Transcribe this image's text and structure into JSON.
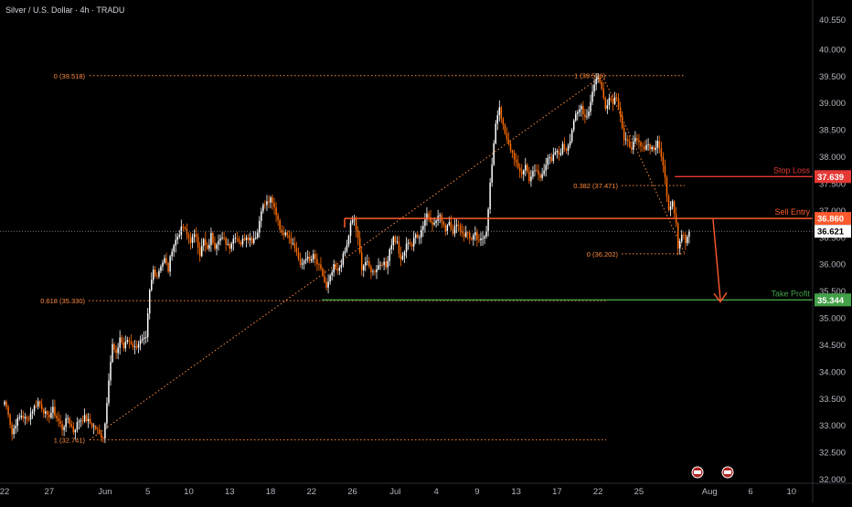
{
  "header": {
    "title": "Silver / U.S. Dollar · 4h · TRADU"
  },
  "colors": {
    "background": "#000000",
    "up": "#ffffff",
    "down": "#ff6d00",
    "fib": "#ff8a3d",
    "entry": "#ff5a2d",
    "stop": "#e53935",
    "take": "#43a047",
    "axis_text": "#d1d4dc",
    "grid_text": "#b2b5be"
  },
  "chart_data": {
    "type": "candlestick",
    "title": "Silver / U.S. Dollar · 4h · TRADU",
    "ylim": [
      32.0,
      40.75
    ],
    "y_ticks": [
      "40.550",
      "40.000",
      "39.500",
      "39.000",
      "38.500",
      "38.000",
      "37.500",
      "37.000",
      "36.500",
      "36.000",
      "35.500",
      "35.000",
      "34.500",
      "34.000",
      "33.500",
      "33.000",
      "32.500",
      "32.000"
    ],
    "x_ticks": [
      {
        "label": "22",
        "bar": 0
      },
      {
        "label": "27",
        "bar": 24
      },
      {
        "label": "Jun",
        "bar": 54
      },
      {
        "label": "5",
        "bar": 77
      },
      {
        "label": "10",
        "bar": 99
      },
      {
        "label": "13",
        "bar": 121
      },
      {
        "label": "18",
        "bar": 143
      },
      {
        "label": "22",
        "bar": 165
      },
      {
        "label": "26",
        "bar": 187
      },
      {
        "label": "Jul",
        "bar": 210
      },
      {
        "label": "4",
        "bar": 232
      },
      {
        "label": "9",
        "bar": 254
      },
      {
        "label": "13",
        "bar": 275
      },
      {
        "label": "17",
        "bar": 297
      },
      {
        "label": "22",
        "bar": 319
      },
      {
        "label": "25",
        "bar": 341
      },
      {
        "label": "Aug",
        "bar": 379
      },
      {
        "label": "6",
        "bar": 401
      },
      {
        "label": "10",
        "bar": 423
      }
    ],
    "anchors": [
      [
        0,
        33.45
      ],
      [
        2,
        33.25
      ],
      [
        4,
        32.85
      ],
      [
        6,
        33.05
      ],
      [
        9,
        33.2
      ],
      [
        12,
        33.1
      ],
      [
        15,
        33.3
      ],
      [
        18,
        33.45
      ],
      [
        20,
        33.35
      ],
      [
        23,
        33.15
      ],
      [
        26,
        33.3
      ],
      [
        28,
        33.15
      ],
      [
        31,
        32.95
      ],
      [
        34,
        33.15
      ],
      [
        37,
        32.9
      ],
      [
        40,
        33.1
      ],
      [
        43,
        33.15
      ],
      [
        46,
        33.05
      ],
      [
        49,
        32.95
      ],
      [
        51,
        32.85
      ],
      [
        53,
        32.8
      ],
      [
        54,
        33.05
      ],
      [
        56,
        33.9
      ],
      [
        58,
        34.5
      ],
      [
        60,
        34.3
      ],
      [
        62,
        34.65
      ],
      [
        64,
        34.45
      ],
      [
        66,
        34.6
      ],
      [
        68,
        34.55
      ],
      [
        70,
        34.45
      ],
      [
        72,
        34.55
      ],
      [
        76,
        34.6
      ],
      [
        78,
        35.5
      ],
      [
        80,
        35.9
      ],
      [
        82,
        35.8
      ],
      [
        84,
        36.0
      ],
      [
        86,
        36.1
      ],
      [
        88,
        35.9
      ],
      [
        90,
        36.3
      ],
      [
        94,
        36.6
      ],
      [
        96,
        36.7
      ],
      [
        98,
        36.55
      ],
      [
        100,
        36.45
      ],
      [
        103,
        36.55
      ],
      [
        105,
        36.2
      ],
      [
        107,
        36.45
      ],
      [
        109,
        36.25
      ],
      [
        111,
        36.55
      ],
      [
        113,
        36.35
      ],
      [
        115,
        36.5
      ],
      [
        118,
        36.45
      ],
      [
        121,
        36.35
      ],
      [
        124,
        36.55
      ],
      [
        127,
        36.4
      ],
      [
        130,
        36.55
      ],
      [
        133,
        36.45
      ],
      [
        136,
        36.6
      ],
      [
        138,
        37.05
      ],
      [
        141,
        37.15
      ],
      [
        143,
        37.2
      ],
      [
        145,
        37.05
      ],
      [
        147,
        36.85
      ],
      [
        149,
        36.55
      ],
      [
        151,
        36.65
      ],
      [
        154,
        36.45
      ],
      [
        157,
        36.25
      ],
      [
        159,
        35.95
      ],
      [
        162,
        36.15
      ],
      [
        164,
        36.05
      ],
      [
        166,
        36.15
      ],
      [
        169,
        35.95
      ],
      [
        171,
        35.8
      ],
      [
        173,
        35.55
      ],
      [
        175,
        35.75
      ],
      [
        177,
        35.95
      ],
      [
        179,
        35.85
      ],
      [
        181,
        36.05
      ],
      [
        184,
        36.35
      ],
      [
        186,
        36.75
      ],
      [
        188,
        36.85
      ],
      [
        190,
        36.45
      ],
      [
        192,
        35.95
      ],
      [
        194,
        36.05
      ],
      [
        196,
        35.95
      ],
      [
        198,
        35.85
      ],
      [
        200,
        35.95
      ],
      [
        203,
        36.05
      ],
      [
        205,
        35.95
      ],
      [
        207,
        36.3
      ],
      [
        209,
        36.5
      ],
      [
        211,
        36.4
      ],
      [
        213,
        36.05
      ],
      [
        215,
        36.25
      ],
      [
        217,
        36.45
      ],
      [
        219,
        36.35
      ],
      [
        221,
        36.55
      ],
      [
        223,
        36.55
      ],
      [
        225,
        36.75
      ],
      [
        227,
        36.95
      ],
      [
        229,
        36.85
      ],
      [
        231,
        36.75
      ],
      [
        233,
        36.9
      ],
      [
        235,
        36.85
      ],
      [
        237,
        36.65
      ],
      [
        239,
        36.85
      ],
      [
        241,
        36.55
      ],
      [
        243,
        36.8
      ],
      [
        245,
        36.65
      ],
      [
        247,
        36.55
      ],
      [
        249,
        36.6
      ],
      [
        251,
        36.45
      ],
      [
        253,
        36.55
      ],
      [
        255,
        36.4
      ],
      [
        257,
        36.5
      ],
      [
        259,
        36.65
      ],
      [
        261,
        37.5
      ],
      [
        263,
        38.2
      ],
      [
        264,
        38.65
      ],
      [
        266,
        38.95
      ],
      [
        268,
        38.55
      ],
      [
        270,
        38.3
      ],
      [
        272,
        38.15
      ],
      [
        274,
        38.0
      ],
      [
        276,
        37.75
      ],
      [
        278,
        37.7
      ],
      [
        280,
        37.85
      ],
      [
        282,
        37.6
      ],
      [
        284,
        37.7
      ],
      [
        286,
        37.75
      ],
      [
        288,
        37.6
      ],
      [
        290,
        37.8
      ],
      [
        292,
        38.0
      ],
      [
        294,
        37.9
      ],
      [
        296,
        38.1
      ],
      [
        298,
        38.05
      ],
      [
        300,
        38.2
      ],
      [
        302,
        38.15
      ],
      [
        304,
        38.35
      ],
      [
        306,
        38.7
      ],
      [
        308,
        38.8
      ],
      [
        310,
        38.95
      ],
      [
        312,
        38.75
      ],
      [
        314,
        38.85
      ],
      [
        316,
        39.25
      ],
      [
        318,
        39.45
      ],
      [
        319,
        39.52
      ],
      [
        321,
        39.25
      ],
      [
        323,
        38.95
      ],
      [
        325,
        39.1
      ],
      [
        327,
        39.05
      ],
      [
        329,
        39.15
      ],
      [
        331,
        38.8
      ],
      [
        333,
        38.3
      ],
      [
        335,
        38.25
      ],
      [
        337,
        38.2
      ],
      [
        339,
        38.3
      ],
      [
        341,
        38.25
      ],
      [
        343,
        38.15
      ],
      [
        345,
        38.25
      ],
      [
        347,
        38.2
      ],
      [
        349,
        38.15
      ],
      [
        351,
        38.25
      ],
      [
        353,
        38.05
      ],
      [
        355,
        37.6
      ],
      [
        357,
        37.05
      ],
      [
        359,
        37.2
      ],
      [
        361,
        36.8
      ],
      [
        362,
        36.3
      ],
      [
        364,
        36.55
      ],
      [
        366,
        36.45
      ],
      [
        368,
        36.62
      ]
    ],
    "reference_lines": [
      {
        "label": "Stop Loss",
        "value": 37.639,
        "badge": "37.639"
      },
      {
        "label": "Sell Entry",
        "value": 36.86,
        "badge": "36.860"
      },
      {
        "label": "Take Profit",
        "value": 35.344,
        "badge": "35.344"
      }
    ],
    "last_price": {
      "value": 36.621,
      "badge": "36.621"
    },
    "fib_levels": [
      {
        "label": "0 (39.518)",
        "value": 39.518
      },
      {
        "label": "1 (39.526)",
        "value": 39.526
      },
      {
        "label": "0.382 (37.471)",
        "value": 37.471
      },
      {
        "label": "0 (36.202)",
        "value": 36.202
      },
      {
        "label": "0.618 (35.330)",
        "value": 35.33
      },
      {
        "label": "1 (32.741)",
        "value": 32.741
      }
    ]
  }
}
